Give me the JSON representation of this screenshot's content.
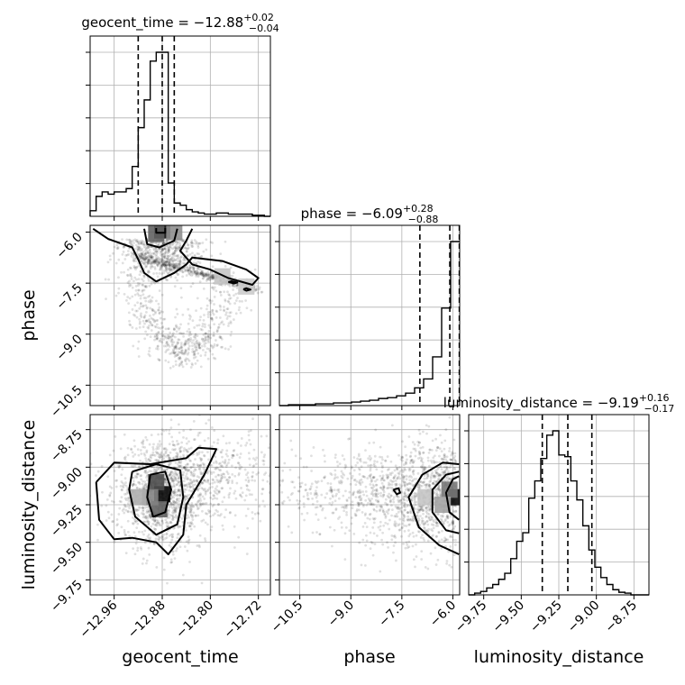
{
  "chart_data": {
    "type": "scatter",
    "subtype": "corner-plot",
    "parameters": [
      "geocent_time",
      "phase",
      "luminosity_distance"
    ],
    "titles": {
      "geocent_time": {
        "prefix": "geocent_time = ",
        "median": "−12.88",
        "plus": "+0.02",
        "minus": "−0.04"
      },
      "phase": {
        "prefix": "phase = ",
        "median": "−6.09",
        "plus": "+0.28",
        "minus": "−0.88"
      },
      "luminosity_distance": {
        "prefix": "luminosity_distance = ",
        "median": "−9.19",
        "plus": "+0.16",
        "minus": "−0.17"
      }
    },
    "axes": {
      "geocent_time": {
        "label": "geocent_time",
        "range": [
          -13.0,
          -12.7
        ],
        "ticks": [
          -12.96,
          -12.88,
          -12.8,
          -12.72
        ],
        "tick_labels": [
          "−12.96",
          "−12.88",
          "−12.80",
          "−12.72"
        ]
      },
      "phase": {
        "label": "phase",
        "range": [
          -11.1,
          -5.8
        ],
        "ticks": [
          -10.5,
          -9.0,
          -7.5,
          -6.0
        ],
        "tick_labels": [
          "−10.5",
          "−9.0",
          "−7.5",
          "−6.0"
        ]
      },
      "luminosity_distance": {
        "label": "luminosity_distance",
        "range": [
          -9.85,
          -8.65
        ],
        "ticks": [
          -9.75,
          -9.5,
          -9.25,
          -9.0,
          -8.75
        ],
        "tick_labels": [
          "−9.75",
          "−9.50",
          "−9.25",
          "−9.00",
          "−8.75"
        ]
      }
    },
    "quantiles": {
      "geocent_time": [
        -12.92,
        -12.88,
        -12.86
      ],
      "phase": [
        -6.97,
        -6.09,
        -5.81
      ],
      "luminosity_distance": [
        -9.36,
        -9.19,
        -9.03
      ]
    },
    "histograms": {
      "geocent_time": {
        "edges": [
          -13.0,
          -12.99,
          -12.98,
          -12.97,
          -12.96,
          -12.95,
          -12.94,
          -12.93,
          -12.92,
          -12.91,
          -12.9,
          -12.89,
          -12.88,
          -12.87,
          -12.86,
          -12.85,
          -12.84,
          -12.83,
          -12.82,
          -12.81,
          -12.8,
          -12.79,
          -12.78,
          -12.77,
          -12.76,
          -12.75,
          -12.74,
          -12.73,
          -12.72,
          -12.71,
          -12.7
        ],
        "counts": [
          5,
          18,
          22,
          20,
          22,
          22,
          25,
          45,
          80,
          105,
          140,
          148,
          148,
          30,
          12,
          10,
          6,
          4,
          3,
          2,
          2,
          3,
          3,
          2,
          2,
          2,
          2,
          1,
          1,
          0
        ]
      },
      "phase": {
        "edges": [
          -11.1,
          -10.835,
          -10.57,
          -10.305,
          -10.04,
          -9.775,
          -9.51,
          -9.245,
          -8.98,
          -8.715,
          -8.45,
          -8.185,
          -7.92,
          -7.655,
          -7.39,
          -7.125,
          -6.86,
          -6.595,
          -6.33,
          -6.065,
          -5.8
        ],
        "counts": [
          0,
          1,
          1,
          1,
          2,
          2,
          3,
          3,
          4,
          5,
          6,
          8,
          9,
          11,
          14,
          20,
          30,
          55,
          110,
          185
        ]
      },
      "luminosity_distance": {
        "edges": [
          -9.85,
          -9.81,
          -9.77,
          -9.73,
          -9.69,
          -9.65,
          -9.61,
          -9.57,
          -9.53,
          -9.49,
          -9.45,
          -9.41,
          -9.37,
          -9.33,
          -9.29,
          -9.25,
          -9.21,
          -9.17,
          -9.13,
          -9.09,
          -9.05,
          -9.01,
          -8.97,
          -8.93,
          -8.89,
          -8.85,
          -8.81,
          -8.77,
          -8.73,
          -8.69,
          -8.65
        ],
        "counts": [
          0,
          2,
          4,
          8,
          12,
          18,
          25,
          42,
          62,
          72,
          112,
          132,
          158,
          185,
          190,
          162,
          160,
          132,
          110,
          80,
          52,
          32,
          20,
          12,
          6,
          3,
          2,
          0,
          0,
          0
        ]
      }
    },
    "pair_plots": [
      {
        "x": "geocent_time",
        "y": "phase",
        "samples_description": "blob at geocent_time≈-12.88 near phase≈-6.0, narrow tail curving to phase≈-7.8 and lower scatter toward phase≈-9.8",
        "hist_peaks": [
          [
            -12.88,
            -5.95,
            1.0
          ],
          [
            -12.89,
            -6.05,
            0.6
          ],
          [
            -12.86,
            -6.0,
            0.4
          ],
          [
            -12.78,
            -7.3,
            0.15
          ],
          [
            -12.74,
            -7.6,
            0.12
          ]
        ],
        "contours": [
          [
            [
              -12.995,
              -5.9
            ],
            [
              -12.97,
              -6.2
            ],
            [
              -12.93,
              -6.45
            ],
            [
              -12.92,
              -6.8
            ],
            [
              -12.91,
              -7.2
            ],
            [
              -12.89,
              -7.45
            ],
            [
              -12.86,
              -7.2
            ],
            [
              -12.84,
              -6.95
            ],
            [
              -12.83,
              -6.75
            ],
            [
              -12.78,
              -6.85
            ],
            [
              -12.74,
              -7.1
            ],
            [
              -12.72,
              -7.35
            ],
            [
              -12.73,
              -7.55
            ],
            [
              -12.77,
              -7.35
            ],
            [
              -12.8,
              -7.1
            ],
            [
              -12.83,
              -6.95
            ],
            [
              -12.85,
              -6.55
            ],
            [
              -12.84,
              -6.25
            ],
            [
              -12.83,
              -5.9
            ]
          ],
          [
            [
              -12.91,
              -5.9
            ],
            [
              -12.905,
              -6.35
            ],
            [
              -12.885,
              -6.45
            ],
            [
              -12.86,
              -6.25
            ],
            [
              -12.855,
              -5.9
            ]
          ],
          [
            [
              -12.89,
              -5.88
            ],
            [
              -12.89,
              -6.02
            ],
            [
              -12.875,
              -6.02
            ],
            [
              -12.875,
              -5.88
            ]
          ],
          [
            [
              -12.77,
              -7.47
            ],
            [
              -12.765,
              -7.44
            ],
            [
              -12.755,
              -7.48
            ],
            [
              -12.76,
              -7.51
            ],
            [
              -12.77,
              -7.47
            ]
          ],
          [
            [
              -12.745,
              -7.68
            ],
            [
              -12.74,
              -7.65
            ],
            [
              -12.733,
              -7.69
            ],
            [
              -12.74,
              -7.72
            ],
            [
              -12.745,
              -7.68
            ]
          ]
        ]
      },
      {
        "x": "geocent_time",
        "y": "luminosity_distance",
        "samples_description": "broad cloud centred near (-12.88, -9.19), wider scatter toward -12.72",
        "hist_peaks": [
          [
            -12.88,
            -9.18,
            1.0
          ],
          [
            -12.89,
            -9.1,
            0.7
          ],
          [
            -12.885,
            -9.28,
            0.6
          ],
          [
            -12.9,
            -9.2,
            0.45
          ],
          [
            -12.92,
            -9.2,
            0.25
          ]
        ],
        "contours": [
          [
            [
              -12.99,
              -9.1
            ],
            [
              -12.96,
              -8.97
            ],
            [
              -12.9,
              -8.98
            ],
            [
              -12.84,
              -8.94
            ],
            [
              -12.82,
              -8.87
            ],
            [
              -12.79,
              -8.88
            ],
            [
              -12.81,
              -9.05
            ],
            [
              -12.84,
              -9.25
            ],
            [
              -12.845,
              -9.45
            ],
            [
              -12.87,
              -9.58
            ],
            [
              -12.89,
              -9.5
            ],
            [
              -12.93,
              -9.47
            ],
            [
              -12.96,
              -9.48
            ],
            [
              -12.985,
              -9.35
            ],
            [
              -12.99,
              -9.1
            ]
          ],
          [
            [
              -12.93,
              -9.03
            ],
            [
              -12.89,
              -8.98
            ],
            [
              -12.85,
              -9.02
            ],
            [
              -12.845,
              -9.2
            ],
            [
              -12.855,
              -9.38
            ],
            [
              -12.89,
              -9.45
            ],
            [
              -12.925,
              -9.33
            ],
            [
              -12.935,
              -9.15
            ],
            [
              -12.93,
              -9.03
            ]
          ],
          [
            [
              -12.9,
              -9.05
            ],
            [
              -12.875,
              -9.03
            ],
            [
              -12.865,
              -9.15
            ],
            [
              -12.875,
              -9.3
            ],
            [
              -12.895,
              -9.33
            ],
            [
              -12.905,
              -9.2
            ],
            [
              -12.9,
              -9.05
            ]
          ]
        ]
      },
      {
        "x": "phase",
        "y": "luminosity_distance",
        "samples_description": "broad cloud concentrated near phase≈-6.0, thinning toward -10.5",
        "hist_peaks": [
          [
            -5.9,
            -9.2,
            1.0
          ],
          [
            -6.1,
            -9.15,
            0.5
          ],
          [
            -6.3,
            -9.25,
            0.3
          ],
          [
            -6.8,
            -9.2,
            0.15
          ]
        ],
        "contours": [
          [
            [
              -5.82,
              -8.98
            ],
            [
              -6.3,
              -8.97
            ],
            [
              -6.9,
              -9.05
            ],
            [
              -7.3,
              -9.2
            ],
            [
              -7.0,
              -9.4
            ],
            [
              -6.4,
              -9.52
            ],
            [
              -5.82,
              -9.58
            ]
          ],
          [
            [
              -5.82,
              -9.03
            ],
            [
              -6.2,
              -9.05
            ],
            [
              -6.6,
              -9.15
            ],
            [
              -6.6,
              -9.3
            ],
            [
              -6.2,
              -9.42
            ],
            [
              -5.82,
              -9.44
            ]
          ],
          [
            [
              -5.82,
              -9.06
            ],
            [
              -6.0,
              -9.08
            ],
            [
              -6.2,
              -9.17
            ],
            [
              -6.1,
              -9.3
            ],
            [
              -5.82,
              -9.35
            ]
          ],
          [
            [
              -7.75,
              -9.15
            ],
            [
              -7.6,
              -9.14
            ],
            [
              -7.55,
              -9.17
            ],
            [
              -7.65,
              -9.18
            ],
            [
              -7.75,
              -9.15
            ]
          ]
        ]
      }
    ],
    "grid": true,
    "legend": "none"
  }
}
